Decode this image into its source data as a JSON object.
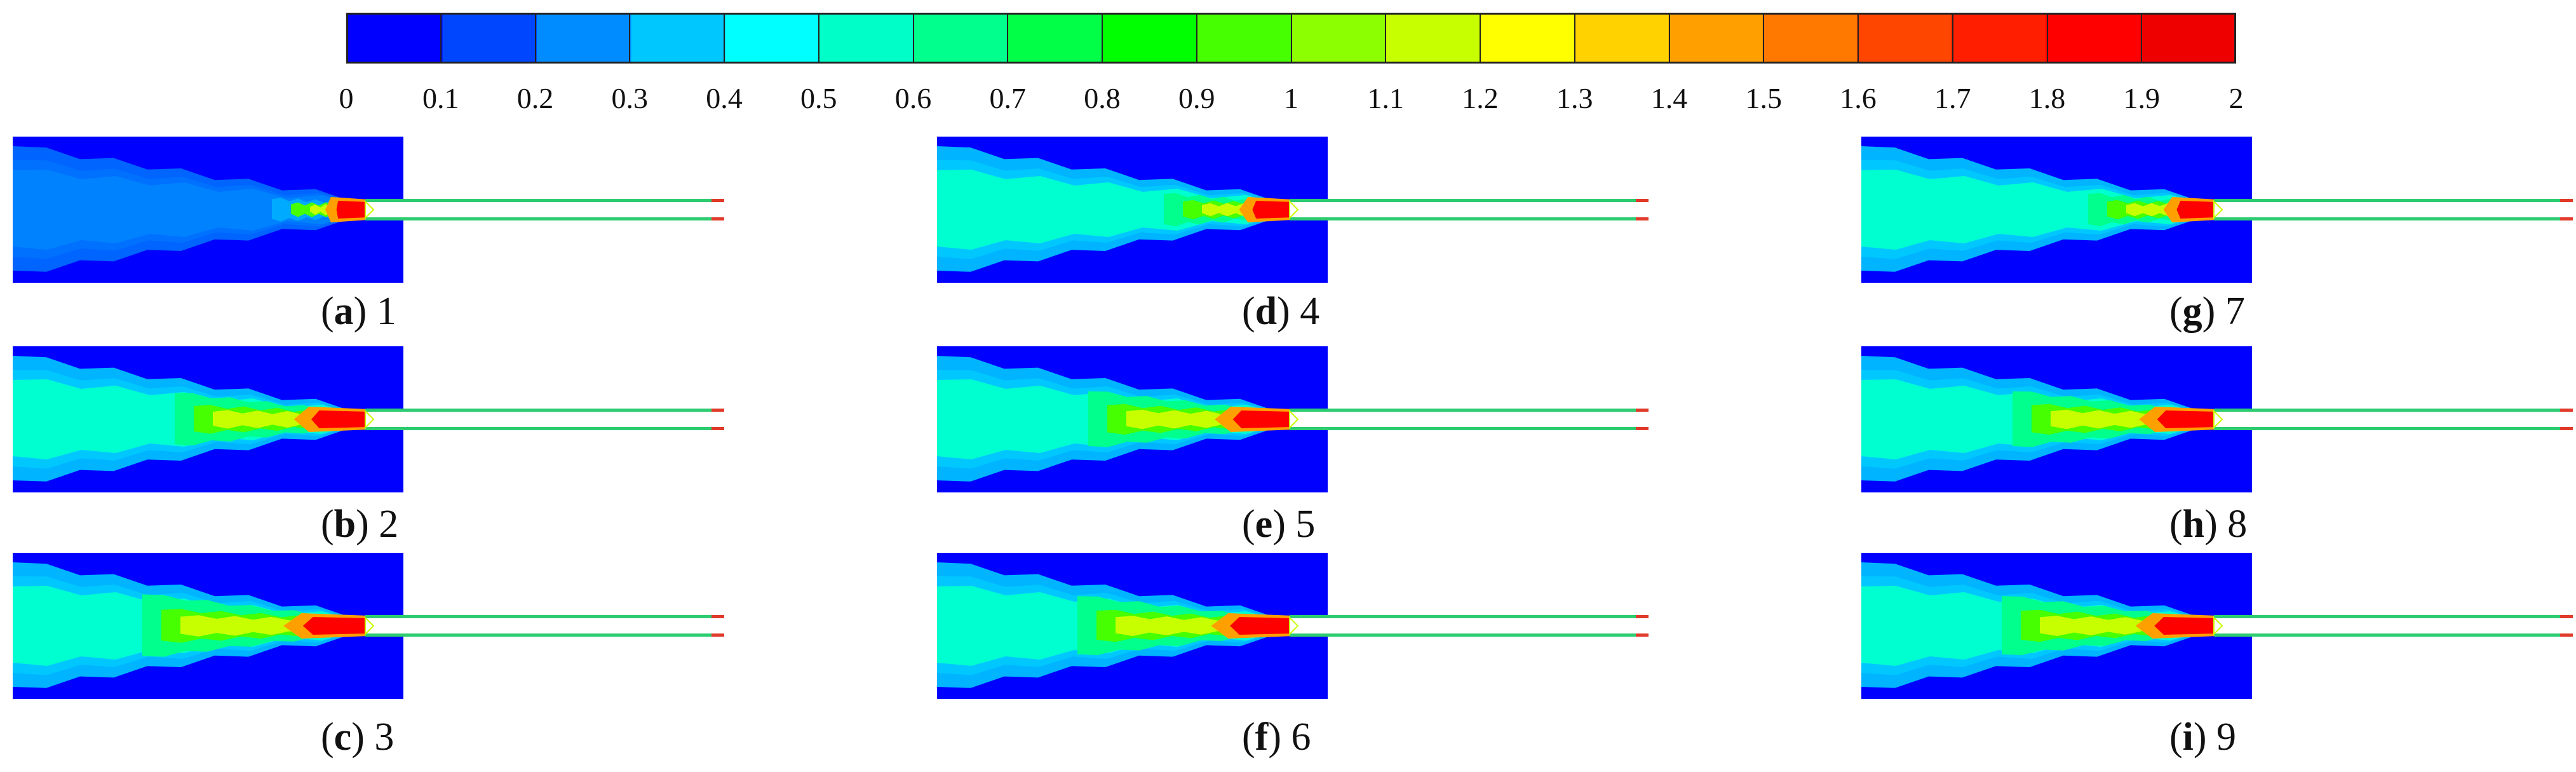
{
  "colorbar": {
    "ticks": [
      "0",
      "0.1",
      "0.2",
      "0.3",
      "0.4",
      "0.5",
      "0.6",
      "0.7",
      "0.8",
      "0.9",
      "1",
      "1.1",
      "1.2",
      "1.3",
      "1.4",
      "1.5",
      "1.6",
      "1.7",
      "1.8",
      "1.9",
      "2"
    ],
    "colors": [
      "#0000ff",
      "#0046ff",
      "#008cff",
      "#00c8ff",
      "#00ffff",
      "#00ffc8",
      "#00ff8c",
      "#00ff46",
      "#00ff00",
      "#46ff00",
      "#8cff00",
      "#c8ff00",
      "#ffff00",
      "#ffd200",
      "#ffa000",
      "#ff7800",
      "#ff4600",
      "#ff1e00",
      "#ff0000",
      "#ee0000"
    ]
  },
  "panels": [
    {
      "letter": "a",
      "value": "1",
      "intensity": 0.3
    },
    {
      "letter": "b",
      "value": "2",
      "intensity": 0.75
    },
    {
      "letter": "c",
      "value": "3",
      "intensity": 0.9
    },
    {
      "letter": "d",
      "value": "4",
      "intensity": 0.45
    },
    {
      "letter": "e",
      "value": "5",
      "intensity": 0.8
    },
    {
      "letter": "f",
      "value": "6",
      "intensity": 0.85
    },
    {
      "letter": "g",
      "value": "7",
      "intensity": 0.45
    },
    {
      "letter": "h",
      "value": "8",
      "intensity": 0.8
    },
    {
      "letter": "i",
      "value": "9",
      "intensity": 0.85
    }
  ]
}
